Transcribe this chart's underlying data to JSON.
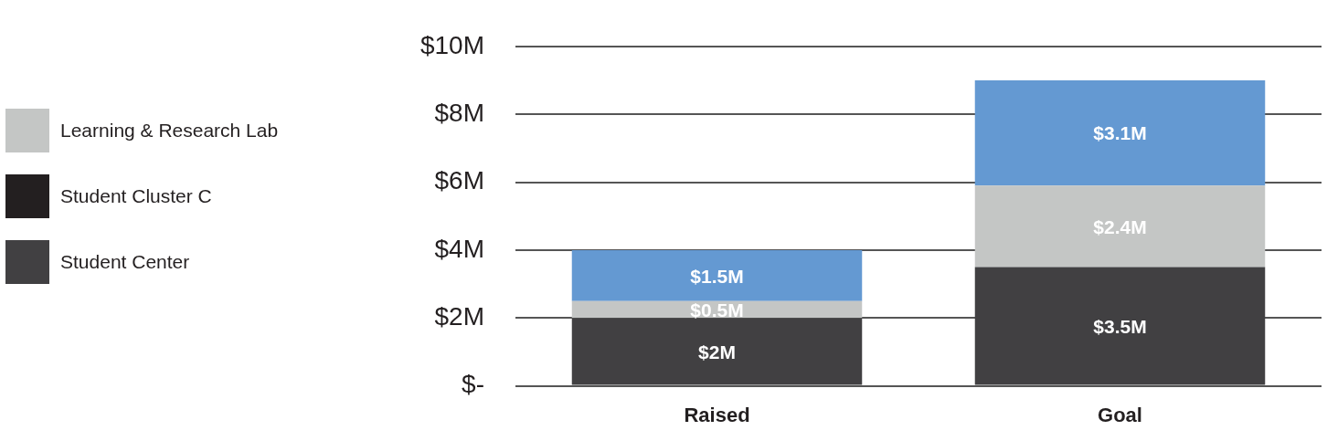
{
  "chart_data": {
    "type": "bar",
    "stacked": true,
    "categories": [
      "Raised",
      "Goal"
    ],
    "ylim": [
      0,
      10
    ],
    "yticks": [
      {
        "value": 0,
        "label": "$-"
      },
      {
        "value": 2,
        "label": "$2M"
      },
      {
        "value": 4,
        "label": "$4M"
      },
      {
        "value": 6,
        "label": "$6M"
      },
      {
        "value": 8,
        "label": "$8M"
      },
      {
        "value": 10,
        "label": "$10M"
      }
    ],
    "grid": "y",
    "legend": "left",
    "series": [
      {
        "name": "Student Center",
        "color": "#414042",
        "values": [
          2,
          3.5
        ],
        "value_labels": [
          "$2M",
          "$3.5M"
        ]
      },
      {
        "name": "Student Cluster C",
        "color": "#231f20",
        "values": [
          null,
          null
        ]
      },
      {
        "name": "Learning & Research Lab",
        "color": "#c4c6c5",
        "values": [
          0.5,
          2.4
        ],
        "value_labels": [
          "$0.5M",
          "$2.4M"
        ]
      },
      {
        "color": "#6499d2",
        "values": [
          1.5,
          3.1
        ],
        "value_labels": [
          "$1.5M",
          "$3.1M"
        ]
      }
    ]
  }
}
